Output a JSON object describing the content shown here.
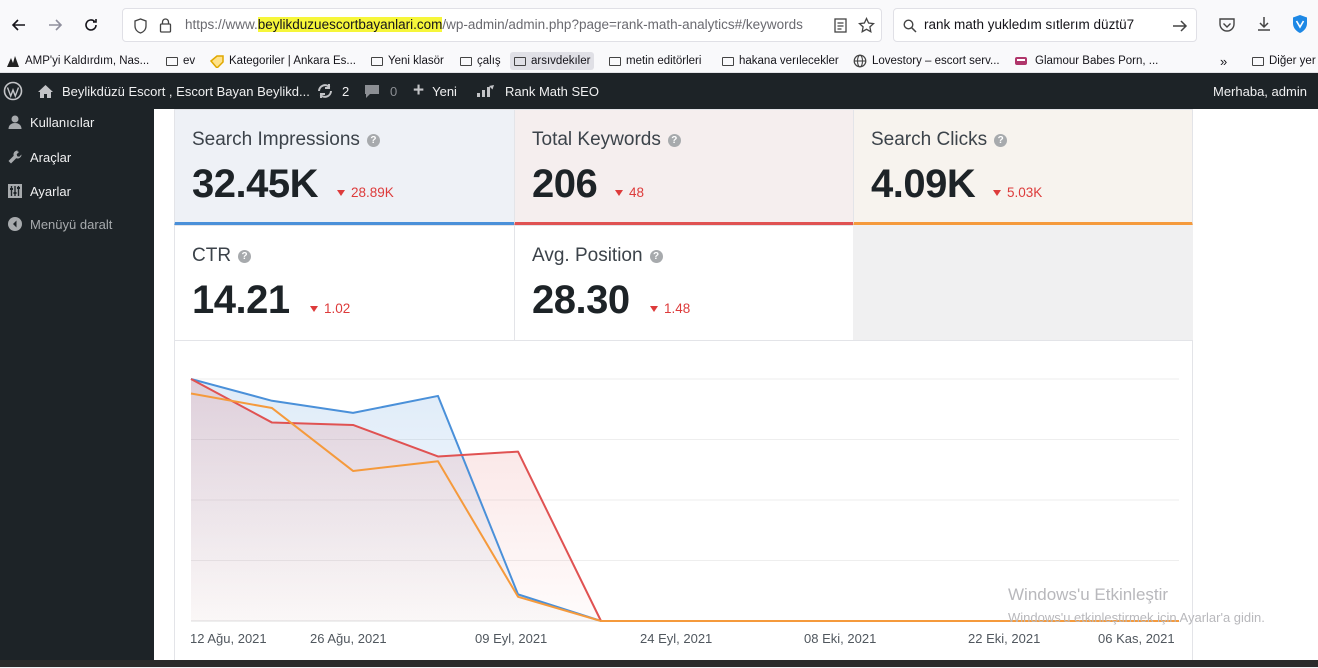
{
  "browser": {
    "url_prefix": "https://www.",
    "url_domain": "beylikduzuescortbayanlari.com",
    "url_rest": "/wp-admin/admin.php?page=rank-math-analytics#/keywords",
    "search_text": "rank math yukledım sıtlerım düztü7"
  },
  "bookmarks": [
    {
      "label": "AMP'yi Kaldırdım, Nas...",
      "icon": "amp-icon"
    },
    {
      "label": "ev",
      "icon": "folder-icon"
    },
    {
      "label": "Kategoriler | Ankara Es...",
      "icon": "tag-icon"
    },
    {
      "label": "Yeni klasör",
      "icon": "folder-icon"
    },
    {
      "label": "çalış",
      "icon": "folder-icon"
    },
    {
      "label": "arsıvdekıler",
      "icon": "folder-icon"
    },
    {
      "label": "metin editörleri",
      "icon": "folder-icon"
    },
    {
      "label": "hakana verılecekler",
      "icon": "folder-icon"
    },
    {
      "label": "Lovestory – escort serv...",
      "icon": "globe-icon"
    },
    {
      "label": "Glamour Babes Porn, ...",
      "icon": "site-icon"
    }
  ],
  "bookmarks_more": "Diğer yer",
  "adminbar": {
    "site_name": "Beylikdüzü Escort , Escort Bayan Beylikd...",
    "updates_count": "2",
    "comments_count": "0",
    "new_label": "Yeni",
    "rankmath_label": "Rank Math SEO",
    "greeting": "Merhaba, admin"
  },
  "sidebar": {
    "items": [
      {
        "label": "Kullanıcılar",
        "icon": "user-icon"
      },
      {
        "label": "Araçlar",
        "icon": "wrench-icon"
      },
      {
        "label": "Ayarlar",
        "icon": "settings-icon"
      }
    ],
    "collapse_label": "Menüyü daralt"
  },
  "stats": {
    "impressions": {
      "title": "Search Impressions",
      "value": "32.45K",
      "delta": "28.89K",
      "accent": "#4a90d9"
    },
    "keywords": {
      "title": "Total Keywords",
      "value": "206",
      "delta": "48",
      "accent": "#e05252"
    },
    "clicks": {
      "title": "Search Clicks",
      "value": "4.09K",
      "delta": "5.03K",
      "accent": "#f59a3c"
    },
    "ctr": {
      "title": "CTR",
      "value": "14.21",
      "delta": "1.02"
    },
    "position": {
      "title": "Avg. Position",
      "value": "28.30",
      "delta": "1.48"
    }
  },
  "chart_data": {
    "type": "line",
    "x_ticks": [
      "12 Ağu, 2021",
      "26 Ağu, 2021",
      "09 Eyl, 2021",
      "24 Eyl, 2021",
      "08 Eki, 2021",
      "22 Eki, 2021",
      "06 Kas, 2021"
    ],
    "x": [
      "12 Ağu, 2021",
      "19 Ağu, 2021",
      "26 Ağu, 2021",
      "02 Eyl, 2021",
      "09 Eyl, 2021",
      "16 Eyl, 2021",
      "24 Eyl, 2021",
      "08 Eki, 2021",
      "22 Eki, 2021",
      "06 Kas, 2021"
    ],
    "ylim": [
      0,
      100
    ],
    "series": [
      {
        "color": "#4a90d9",
        "values": [
          100,
          91,
          86,
          93,
          11,
          0,
          0,
          0,
          0,
          0
        ]
      },
      {
        "color": "#e05252",
        "values": [
          100,
          82,
          81,
          68,
          70,
          0,
          0,
          0,
          0,
          0
        ]
      },
      {
        "color": "#f59a3c",
        "values": [
          94,
          88,
          62,
          66,
          10,
          0,
          0,
          0,
          0,
          0
        ]
      }
    ],
    "grid": true,
    "legend": "none"
  },
  "watermark": {
    "line1": "Windows'u Etkinleştir",
    "line2": "Windows'u etkinleştirmek için Ayarlar'a gidin."
  }
}
